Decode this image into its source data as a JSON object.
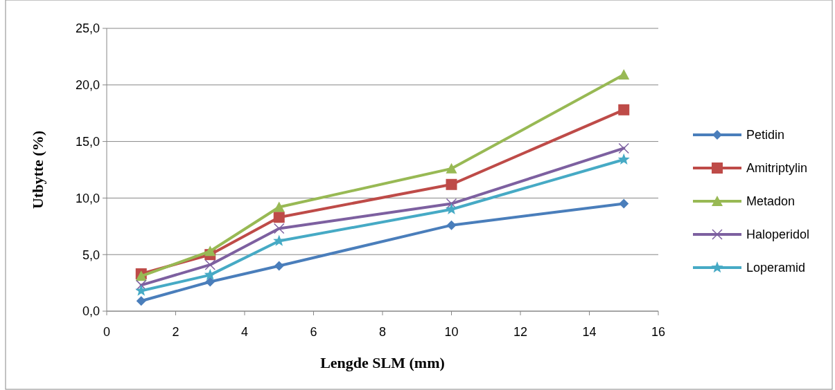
{
  "chart_data": {
    "type": "line",
    "xlabel": "Lengde SLM (mm)",
    "ylabel": "Utbytte (%)",
    "x": [
      1,
      3,
      5,
      10,
      15
    ],
    "xlim": [
      0,
      16
    ],
    "xticks": [
      0,
      2,
      4,
      6,
      8,
      10,
      12,
      14,
      16
    ],
    "ylim": [
      0,
      25
    ],
    "yticks": [
      {
        "value": 0,
        "label": "0,0"
      },
      {
        "value": 5,
        "label": "5,0"
      },
      {
        "value": 10,
        "label": "10,0"
      },
      {
        "value": 15,
        "label": "15,0"
      },
      {
        "value": 20,
        "label": "20,0"
      },
      {
        "value": 25,
        "label": "25,0"
      }
    ],
    "grid": "y",
    "legend": "right",
    "line_style": "solid",
    "series": [
      {
        "name": "Petidin",
        "color": "#4a7ebb",
        "marker": "diamond",
        "values": [
          0.9,
          2.6,
          4.0,
          7.6,
          9.5
        ]
      },
      {
        "name": "Amitriptylin",
        "color": "#be4b48",
        "marker": "square",
        "values": [
          3.3,
          5.0,
          8.3,
          11.2,
          17.8
        ]
      },
      {
        "name": "Metadon",
        "color": "#98b954",
        "marker": "triangle",
        "values": [
          3.1,
          5.3,
          9.2,
          12.6,
          20.9
        ]
      },
      {
        "name": "Haloperidol",
        "color": "#7d60a0",
        "marker": "cross",
        "values": [
          2.3,
          4.1,
          7.3,
          9.5,
          14.4
        ]
      },
      {
        "name": "Loperamid",
        "color": "#46aac5",
        "marker": "star",
        "values": [
          1.8,
          3.2,
          6.2,
          9.0,
          13.4
        ]
      }
    ]
  }
}
